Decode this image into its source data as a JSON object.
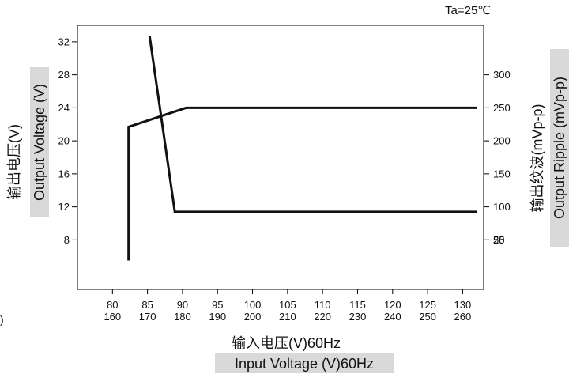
{
  "chart_data": {
    "type": "line",
    "annotation": "Ta=25℃",
    "x_axis": {
      "label_cn": "输入电压(V)60Hz",
      "label_en": "Input Voltage (V)60Hz",
      "ticks": [
        {
          "v": 80,
          "top": "80",
          "bottom": "160"
        },
        {
          "v": 85,
          "top": "85",
          "bottom": "170"
        },
        {
          "v": 90,
          "top": "90",
          "bottom": "180"
        },
        {
          "v": 95,
          "top": "95",
          "bottom": "190"
        },
        {
          "v": 100,
          "top": "100",
          "bottom": "200"
        },
        {
          "v": 105,
          "top": "105",
          "bottom": "210"
        },
        {
          "v": 110,
          "top": "110",
          "bottom": "220"
        },
        {
          "v": 115,
          "top": "115",
          "bottom": "230"
        },
        {
          "v": 120,
          "top": "120",
          "bottom": "240"
        },
        {
          "v": 125,
          "top": "125",
          "bottom": "250"
        },
        {
          "v": 130,
          "top": "130",
          "bottom": "260"
        }
      ],
      "range": [
        75,
        133
      ]
    },
    "y_left": {
      "label_cn": "输出电压(V)",
      "label_en": "Output Voltage (V)",
      "ticks": [
        8,
        12,
        16,
        20,
        24,
        28,
        32
      ],
      "range": [
        2,
        34
      ]
    },
    "y_right": {
      "label_cn": "输出纹波(mVp-p)",
      "label_en": "Output Ripple (mVp-p)",
      "ticks": [
        {
          "v": 25,
          "label": "25"
        },
        {
          "v": 50,
          "label": "50"
        },
        {
          "v": 100,
          "label": "100"
        },
        {
          "v": 150,
          "label": "150"
        },
        {
          "v": 200,
          "label": "200"
        },
        {
          "v": 250,
          "label": "250"
        },
        {
          "v": 300,
          "label": "300"
        }
      ]
    },
    "series": [
      {
        "axis": "left",
        "points": [
          [
            82.3,
            5.5
          ],
          [
            82.3,
            21.7
          ],
          [
            90.5,
            24
          ],
          [
            132,
            24
          ]
        ]
      },
      {
        "axis": "left",
        "points": [
          [
            85.3,
            32.7
          ],
          [
            88.9,
            11.4
          ],
          [
            132,
            11.4
          ]
        ]
      }
    ],
    "edge_mark": ")"
  }
}
